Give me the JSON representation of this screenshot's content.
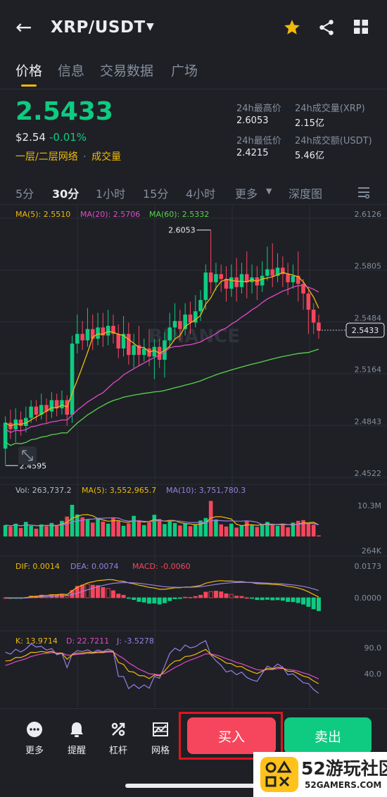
{
  "header": {
    "back_icon": "back-arrow-icon",
    "pair": "XRP/USDT",
    "caret_icon": "caret-down-icon",
    "icons": [
      "star-icon",
      "share-icon",
      "grid-icon"
    ],
    "star_color": "#f0b90b"
  },
  "tabs": [
    "价格",
    "信息",
    "交易数据",
    "广场"
  ],
  "ticker": {
    "price": "2.5433",
    "usd_price": "$2.54",
    "change": "-0.01%",
    "tag1": "一层/二层网络",
    "tag_sep": "·",
    "tag2": "成交量",
    "stats": [
      {
        "label": "24h最高价",
        "value": "2.6053"
      },
      {
        "label": "24h成交量(XRP)",
        "value": "2.15亿"
      },
      {
        "label": "24h最低价",
        "value": "2.4215"
      },
      {
        "label": "24h成交额(USDT)",
        "value": "5.46亿"
      }
    ]
  },
  "intervals": [
    "5分",
    "30分",
    "1小时",
    "15分",
    "4小时",
    "更多",
    "深度图"
  ],
  "active_interval": "30分",
  "chart_data": {
    "type": "candlestick",
    "ma_legend": [
      {
        "label": "MA(5): 2.5510",
        "color": "#f0b90b"
      },
      {
        "label": "MA(20): 2.5706",
        "color": "#e14ac9"
      },
      {
        "label": "MA(60): 2.5332",
        "color": "#5ad34b"
      }
    ],
    "price_axis": [
      "2.6126",
      "2.5805",
      "2.5484",
      "2.5164",
      "2.4843",
      "2.4522"
    ],
    "ylim": [
      2.4522,
      2.6126
    ],
    "current_price": "2.5433",
    "high_marker": "2.6053",
    "low_marker": "2.4595",
    "watermark": "BINANCE",
    "candles": [
      [
        2.47,
        2.486,
        2.46,
        2.49
      ],
      [
        2.486,
        2.482,
        2.476,
        2.494
      ],
      [
        2.482,
        2.488,
        2.474,
        2.495
      ],
      [
        2.488,
        2.484,
        2.478,
        2.493
      ],
      [
        2.484,
        2.489,
        2.48,
        2.496
      ],
      [
        2.489,
        2.496,
        2.486,
        2.5
      ],
      [
        2.496,
        2.491,
        2.487,
        2.5
      ],
      [
        2.491,
        2.497,
        2.488,
        2.504
      ],
      [
        2.497,
        2.493,
        2.486,
        2.501
      ],
      [
        2.493,
        2.5,
        2.489,
        2.505
      ],
      [
        2.5,
        2.495,
        2.49,
        2.504
      ],
      [
        2.495,
        2.5,
        2.491,
        2.506
      ],
      [
        2.5,
        2.491,
        2.484,
        2.503
      ],
      [
        2.491,
        2.535,
        2.486,
        2.54
      ],
      [
        2.535,
        2.541,
        2.529,
        2.553
      ],
      [
        2.541,
        2.537,
        2.531,
        2.549
      ],
      [
        2.537,
        2.544,
        2.533,
        2.557
      ],
      [
        2.544,
        2.538,
        2.531,
        2.553
      ],
      [
        2.538,
        2.545,
        2.534,
        2.554
      ],
      [
        2.545,
        2.54,
        2.533,
        2.554
      ],
      [
        2.54,
        2.546,
        2.534,
        2.556
      ],
      [
        2.546,
        2.541,
        2.535,
        2.553
      ],
      [
        2.541,
        2.532,
        2.526,
        2.547
      ],
      [
        2.532,
        2.541,
        2.527,
        2.552
      ],
      [
        2.541,
        2.528,
        2.522,
        2.548
      ],
      [
        2.528,
        2.534,
        2.52,
        2.541
      ],
      [
        2.534,
        2.528,
        2.521,
        2.546
      ],
      [
        2.528,
        2.532,
        2.524,
        2.538
      ],
      [
        2.532,
        2.527,
        2.521,
        2.544
      ],
      [
        2.527,
        2.533,
        2.513,
        2.538
      ],
      [
        2.533,
        2.525,
        2.52,
        2.538
      ],
      [
        2.525,
        2.537,
        2.514,
        2.542
      ],
      [
        2.537,
        2.545,
        2.532,
        2.554
      ],
      [
        2.545,
        2.549,
        2.538,
        2.56
      ],
      [
        2.549,
        2.544,
        2.537,
        2.556
      ],
      [
        2.544,
        2.553,
        2.54,
        2.56
      ],
      [
        2.553,
        2.548,
        2.541,
        2.561
      ],
      [
        2.548,
        2.555,
        2.545,
        2.565
      ],
      [
        2.555,
        2.562,
        2.549,
        2.568
      ],
      [
        2.562,
        2.579,
        2.556,
        2.584
      ],
      [
        2.579,
        2.573,
        2.566,
        2.605
      ],
      [
        2.573,
        2.578,
        2.568,
        2.585
      ],
      [
        2.578,
        2.575,
        2.567,
        2.584
      ],
      [
        2.575,
        2.569,
        2.561,
        2.583
      ],
      [
        2.569,
        2.576,
        2.564,
        2.584
      ],
      [
        2.576,
        2.57,
        2.561,
        2.588
      ],
      [
        2.57,
        2.578,
        2.566,
        2.585
      ],
      [
        2.578,
        2.573,
        2.563,
        2.592
      ],
      [
        2.573,
        2.576,
        2.566,
        2.584
      ],
      [
        2.576,
        2.571,
        2.562,
        2.583
      ],
      [
        2.571,
        2.577,
        2.567,
        2.586
      ],
      [
        2.577,
        2.581,
        2.574,
        2.595
      ],
      [
        2.581,
        2.577,
        2.57,
        2.597
      ],
      [
        2.577,
        2.582,
        2.573,
        2.591
      ],
      [
        2.582,
        2.578,
        2.57,
        2.589
      ],
      [
        2.578,
        2.573,
        2.565,
        2.585
      ],
      [
        2.573,
        2.577,
        2.569,
        2.584
      ],
      [
        2.577,
        2.572,
        2.561,
        2.592
      ],
      [
        2.572,
        2.566,
        2.556,
        2.575
      ],
      [
        2.566,
        2.556,
        2.541,
        2.568
      ],
      [
        2.556,
        2.548,
        2.541,
        2.56
      ],
      [
        2.548,
        2.543,
        2.538,
        2.553
      ]
    ],
    "volume": {
      "legend": [
        {
          "label": "Vol: 263,737.2",
          "color": "#b7bdc6"
        },
        {
          "label": "MA(5): 3,552,965.7",
          "color": "#f0b90b"
        },
        {
          "label": "MA(10): 3,751,780.3",
          "color": "#9b7fe6"
        }
      ],
      "axis": [
        "10.3M",
        "264K"
      ],
      "values": [
        3.2,
        2.8,
        3.6,
        2.4,
        4.1,
        3.0,
        2.2,
        3.4,
        2.9,
        3.8,
        3.1,
        4.4,
        5.6,
        8.9,
        6.2,
        5.4,
        4.7,
        3.9,
        5.1,
        4.2,
        3.6,
        5.3,
        4.4,
        3.0,
        3.7,
        5.8,
        4.6,
        3.2,
        4.0,
        6.1,
        4.9,
        3.5,
        4.2,
        3.8,
        3.1,
        3.6,
        2.9,
        3.3,
        4.5,
        5.2,
        10.0,
        4.8,
        3.4,
        2.8,
        3.6,
        2.5,
        3.0,
        4.3,
        3.2,
        2.7,
        3.5,
        4.1,
        3.6,
        3.0,
        3.4,
        2.6,
        3.9,
        4.4,
        4.6,
        3.8,
        3.3,
        0.3
      ]
    },
    "macd": {
      "legend": [
        {
          "label": "DIF: 0.0014",
          "color": "#f0b90b"
        },
        {
          "label": "DEA: 0.0074",
          "color": "#9b7fe6"
        },
        {
          "label": "MACD: -0.0060",
          "color": "#f6465d"
        }
      ],
      "axis": [
        "0.0173",
        "0.0000"
      ]
    },
    "kdj": {
      "legend": [
        {
          "label": "K: 13.9714",
          "color": "#f0b90b"
        },
        {
          "label": "D: 22.7211",
          "color": "#e14ac9"
        },
        {
          "label": "J: -3.5278",
          "color": "#9b7fe6"
        }
      ],
      "axis": [
        "90.0",
        "40.0"
      ]
    }
  },
  "bottom_nav": [
    {
      "label": "更多",
      "icon": "more-dots-icon"
    },
    {
      "label": "提醒",
      "icon": "bell-icon"
    },
    {
      "label": "杠杆",
      "icon": "percent-leverage-icon"
    },
    {
      "label": "网格",
      "icon": "grid-bot-icon"
    }
  ],
  "buy_label": "买入",
  "sell_label": "卖出",
  "colors": {
    "up": "#0ecb81",
    "down": "#f6465d",
    "accent": "#f0b90b",
    "bg": "#1e2026"
  },
  "watermark_site": {
    "big": "52游玩社区",
    "small": "52GAMERS.COM"
  }
}
